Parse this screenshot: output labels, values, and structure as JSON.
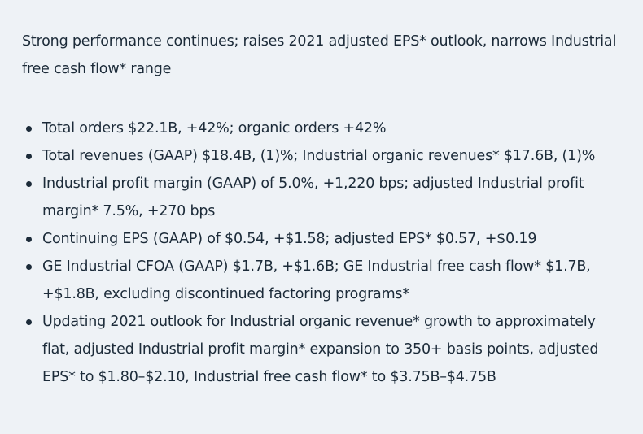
{
  "header": {
    "title": "Strong performance continues; raises 2021 adjusted EPS* outlook, narrows Industrial free cash flow* range"
  },
  "bullets": [
    "Total orders $22.1B, +42%; organic orders +42%",
    "Total revenues (GAAP) $18.4B, (1)%; Industrial organic revenues* $17.6B, (1)%",
    "Industrial profit margin (GAAP) of 5.0%, +1,220 bps; adjusted Industrial profit margin* 7.5%, +270 bps",
    "Continuing EPS (GAAP) of $0.54, +$1.58; adjusted EPS* $0.57, +$0.19",
    "GE Industrial CFOA (GAAP) $1.7B, +$1.6B; GE Industrial free cash flow* $1.7B, +$1.8B, excluding discontinued factoring programs*",
    "Updating 2021 outlook for Industrial organic revenue* growth to approximately flat, adjusted Industrial profit margin* expansion to 350+ basis points, adjusted EPS* to $1.80–$2.10, Industrial free cash flow* to $3.75B–$4.75B"
  ]
}
